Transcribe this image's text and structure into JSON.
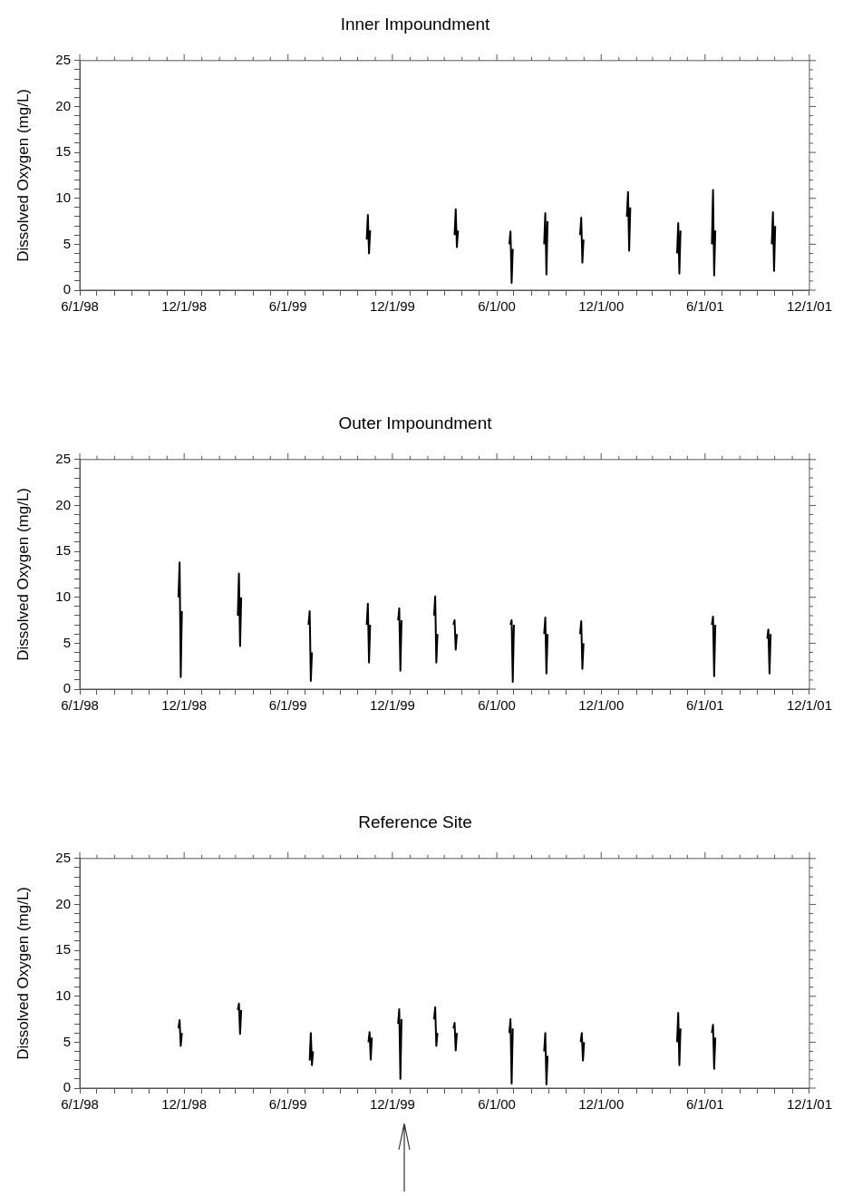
{
  "chart_data": [
    {
      "type": "line",
      "title": "Inner Impoundment",
      "ylabel": "Dissolved Oxygen (mg/L)",
      "grid": false,
      "marker": "none",
      "line_style": "solid",
      "series": [
        {
          "color": "#000000",
          "x": [
            "1999-10-17",
            "1999-10-19",
            "1999-10-21",
            "1999-10-23",
            "1999-10-25",
            "2000-03-19",
            "2000-03-21",
            "2000-03-23",
            "2000-03-25",
            "2000-03-27",
            "2000-06-23",
            "2000-06-25",
            "2000-06-27",
            "2000-06-29",
            "2000-07-01",
            "2000-08-23",
            "2000-08-25",
            "2000-08-27",
            "2000-08-29",
            "2000-08-31",
            "2000-10-25",
            "2000-10-27",
            "2000-10-29",
            "2000-10-31",
            "2000-11-02",
            "2001-01-15",
            "2001-01-17",
            "2001-01-19",
            "2001-01-21",
            "2001-01-23",
            "2001-04-13",
            "2001-04-15",
            "2001-04-17",
            "2001-04-19",
            "2001-04-21",
            "2001-06-13",
            "2001-06-15",
            "2001-06-17",
            "2001-06-19",
            "2001-06-21",
            "2001-09-26",
            "2001-09-28",
            "2001-09-30",
            "2001-10-02"
          ],
          "values": [
            5.5,
            8.2,
            4.0,
            6.5,
            null,
            6.0,
            8.8,
            4.7,
            6.5,
            null,
            5.0,
            6.4,
            0.8,
            4.5,
            null,
            5.0,
            8.4,
            1.7,
            7.5,
            null,
            6.0,
            7.9,
            3.0,
            5.5,
            null,
            8.0,
            10.7,
            4.3,
            9.0,
            null,
            4.0,
            7.3,
            1.8,
            6.5,
            null,
            5.0,
            10.9,
            1.6,
            6.5,
            null,
            5.0,
            8.5,
            2.1,
            7.0
          ]
        }
      ],
      "xlim": [
        "1998-06-01",
        "2001-12-01"
      ],
      "ylim": [
        0,
        25
      ],
      "yticks": [
        0,
        {
          "value": 1,
          "label": null
        },
        {
          "value": 2,
          "label": null
        },
        {
          "value": 3,
          "label": null
        },
        {
          "value": 4,
          "label": null
        },
        5,
        {
          "value": 6,
          "label": null
        },
        {
          "value": 7,
          "label": null
        },
        {
          "value": 8,
          "label": null
        },
        {
          "value": 9,
          "label": null
        },
        10,
        {
          "value": 11,
          "label": null
        },
        {
          "value": 12,
          "label": null
        },
        {
          "value": 13,
          "label": null
        },
        {
          "value": 14,
          "label": null
        },
        15,
        {
          "value": 16,
          "label": null
        },
        {
          "value": 17,
          "label": null
        },
        {
          "value": 18,
          "label": null
        },
        {
          "value": 19,
          "label": null
        },
        20,
        {
          "value": 21,
          "label": null
        },
        {
          "value": 22,
          "label": null
        },
        {
          "value": 23,
          "label": null
        },
        {
          "value": 24,
          "label": null
        },
        25
      ],
      "xticks": [
        {
          "value": "1998-06-01",
          "label": "6/1/98"
        },
        {
          "value": "1998-07-01",
          "label": null
        },
        {
          "value": "1998-08-01",
          "label": null
        },
        {
          "value": "1998-09-01",
          "label": null
        },
        {
          "value": "1998-10-01",
          "label": null
        },
        {
          "value": "1998-11-01",
          "label": null
        },
        {
          "value": "1998-12-01",
          "label": "12/1/98"
        },
        {
          "value": "1999-01-01",
          "label": null
        },
        {
          "value": "1999-02-01",
          "label": null
        },
        {
          "value": "1999-03-01",
          "label": null
        },
        {
          "value": "1999-04-01",
          "label": null
        },
        {
          "value": "1999-05-01",
          "label": null
        },
        {
          "value": "1999-06-01",
          "label": "6/1/99"
        },
        {
          "value": "1999-07-01",
          "label": null
        },
        {
          "value": "1999-08-01",
          "label": null
        },
        {
          "value": "1999-09-01",
          "label": null
        },
        {
          "value": "1999-10-01",
          "label": null
        },
        {
          "value": "1999-11-01",
          "label": null
        },
        {
          "value": "1999-12-01",
          "label": "12/1/99"
        },
        {
          "value": "2000-01-01",
          "label": null
        },
        {
          "value": "2000-02-01",
          "label": null
        },
        {
          "value": "2000-03-01",
          "label": null
        },
        {
          "value": "2000-04-01",
          "label": null
        },
        {
          "value": "2000-05-01",
          "label": null
        },
        {
          "value": "2000-06-01",
          "label": "6/1/00"
        },
        {
          "value": "2000-07-01",
          "label": null
        },
        {
          "value": "2000-08-01",
          "label": null
        },
        {
          "value": "2000-09-01",
          "label": null
        },
        {
          "value": "2000-10-01",
          "label": null
        },
        {
          "value": "2000-11-01",
          "label": null
        },
        {
          "value": "2000-12-01",
          "label": "12/1/00"
        },
        {
          "value": "2001-01-01",
          "label": null
        },
        {
          "value": "2001-02-01",
          "label": null
        },
        {
          "value": "2001-03-01",
          "label": null
        },
        {
          "value": "2001-04-01",
          "label": null
        },
        {
          "value": "2001-05-01",
          "label": null
        },
        {
          "value": "2001-06-01",
          "label": "6/1/01"
        },
        {
          "value": "2001-07-01",
          "label": null
        },
        {
          "value": "2001-08-01",
          "label": null
        },
        {
          "value": "2001-09-01",
          "label": null
        },
        {
          "value": "2001-10-01",
          "label": null
        },
        {
          "value": "2001-11-01",
          "label": null
        },
        {
          "value": "2001-12-01",
          "label": "12/1/01"
        }
      ]
    },
    {
      "type": "line",
      "title": "Outer Impoundment",
      "ylabel": "Dissolved Oxygen (mg/L)",
      "grid": false,
      "marker": "none",
      "line_style": "solid",
      "series": [
        {
          "color": "#000000",
          "x": [
            "1998-11-21",
            "1998-11-23",
            "1998-11-25",
            "1998-11-27",
            "1998-11-29",
            "1999-03-05",
            "1999-03-07",
            "1999-03-09",
            "1999-03-11",
            "1999-03-13",
            "1999-07-07",
            "1999-07-09",
            "1999-07-11",
            "1999-07-13",
            "1999-07-15",
            "1999-10-17",
            "1999-10-19",
            "1999-10-21",
            "1999-10-23",
            "1999-10-25",
            "1999-12-11",
            "1999-12-13",
            "1999-12-15",
            "1999-12-17",
            "1999-12-19",
            "2000-02-12",
            "2000-02-14",
            "2000-02-16",
            "2000-02-18",
            "2000-02-20",
            "2000-03-17",
            "2000-03-19",
            "2000-03-21",
            "2000-03-23",
            "2000-03-25",
            "2000-06-25",
            "2000-06-27",
            "2000-06-29",
            "2000-07-01",
            "2000-07-03",
            "2000-08-23",
            "2000-08-25",
            "2000-08-27",
            "2000-08-29",
            "2000-08-31",
            "2000-10-25",
            "2000-10-27",
            "2000-10-29",
            "2000-10-31",
            "2000-11-02",
            "2001-06-13",
            "2001-06-15",
            "2001-06-17",
            "2001-06-19",
            "2001-06-21",
            "2001-09-18",
            "2001-09-20",
            "2001-09-22",
            "2001-09-24"
          ],
          "values": [
            10.0,
            13.8,
            1.3,
            8.5,
            null,
            8.0,
            12.6,
            4.7,
            10.0,
            null,
            7.0,
            8.5,
            0.9,
            4.0,
            null,
            7.0,
            9.3,
            2.9,
            7.0,
            null,
            7.5,
            8.8,
            2.0,
            7.5,
            null,
            8.0,
            10.1,
            2.9,
            6.0,
            null,
            7.0,
            7.5,
            4.3,
            6.0,
            null,
            7.0,
            7.5,
            0.8,
            7.0,
            null,
            6.0,
            7.8,
            1.7,
            6.0,
            null,
            6.0,
            7.4,
            2.2,
            5.0,
            null,
            7.0,
            7.9,
            1.4,
            7.0,
            null,
            5.5,
            6.5,
            1.7,
            6.0
          ]
        }
      ],
      "xlim": [
        "1998-06-01",
        "2001-12-01"
      ],
      "ylim": [
        0,
        25
      ],
      "yticks": [
        0,
        {
          "value": 1,
          "label": null
        },
        {
          "value": 2,
          "label": null
        },
        {
          "value": 3,
          "label": null
        },
        {
          "value": 4,
          "label": null
        },
        5,
        {
          "value": 6,
          "label": null
        },
        {
          "value": 7,
          "label": null
        },
        {
          "value": 8,
          "label": null
        },
        {
          "value": 9,
          "label": null
        },
        10,
        {
          "value": 11,
          "label": null
        },
        {
          "value": 12,
          "label": null
        },
        {
          "value": 13,
          "label": null
        },
        {
          "value": 14,
          "label": null
        },
        15,
        {
          "value": 16,
          "label": null
        },
        {
          "value": 17,
          "label": null
        },
        {
          "value": 18,
          "label": null
        },
        {
          "value": 19,
          "label": null
        },
        20,
        {
          "value": 21,
          "label": null
        },
        {
          "value": 22,
          "label": null
        },
        {
          "value": 23,
          "label": null
        },
        {
          "value": 24,
          "label": null
        },
        25
      ],
      "xticks": [
        {
          "value": "1998-06-01",
          "label": "6/1/98"
        },
        {
          "value": "1998-07-01",
          "label": null
        },
        {
          "value": "1998-08-01",
          "label": null
        },
        {
          "value": "1998-09-01",
          "label": null
        },
        {
          "value": "1998-10-01",
          "label": null
        },
        {
          "value": "1998-11-01",
          "label": null
        },
        {
          "value": "1998-12-01",
          "label": "12/1/98"
        },
        {
          "value": "1999-01-01",
          "label": null
        },
        {
          "value": "1999-02-01",
          "label": null
        },
        {
          "value": "1999-03-01",
          "label": null
        },
        {
          "value": "1999-04-01",
          "label": null
        },
        {
          "value": "1999-05-01",
          "label": null
        },
        {
          "value": "1999-06-01",
          "label": "6/1/99"
        },
        {
          "value": "1999-07-01",
          "label": null
        },
        {
          "value": "1999-08-01",
          "label": null
        },
        {
          "value": "1999-09-01",
          "label": null
        },
        {
          "value": "1999-10-01",
          "label": null
        },
        {
          "value": "1999-11-01",
          "label": null
        },
        {
          "value": "1999-12-01",
          "label": "12/1/99"
        },
        {
          "value": "2000-01-01",
          "label": null
        },
        {
          "value": "2000-02-01",
          "label": null
        },
        {
          "value": "2000-03-01",
          "label": null
        },
        {
          "value": "2000-04-01",
          "label": null
        },
        {
          "value": "2000-05-01",
          "label": null
        },
        {
          "value": "2000-06-01",
          "label": "6/1/00"
        },
        {
          "value": "2000-07-01",
          "label": null
        },
        {
          "value": "2000-08-01",
          "label": null
        },
        {
          "value": "2000-09-01",
          "label": null
        },
        {
          "value": "2000-10-01",
          "label": null
        },
        {
          "value": "2000-11-01",
          "label": null
        },
        {
          "value": "2000-12-01",
          "label": "12/1/00"
        },
        {
          "value": "2001-01-01",
          "label": null
        },
        {
          "value": "2001-02-01",
          "label": null
        },
        {
          "value": "2001-03-01",
          "label": null
        },
        {
          "value": "2001-04-01",
          "label": null
        },
        {
          "value": "2001-05-01",
          "label": null
        },
        {
          "value": "2001-06-01",
          "label": "6/1/01"
        },
        {
          "value": "2001-07-01",
          "label": null
        },
        {
          "value": "2001-08-01",
          "label": null
        },
        {
          "value": "2001-09-01",
          "label": null
        },
        {
          "value": "2001-10-01",
          "label": null
        },
        {
          "value": "2001-11-01",
          "label": null
        },
        {
          "value": "2001-12-01",
          "label": "12/1/01"
        }
      ]
    },
    {
      "type": "line",
      "title": "Reference Site",
      "ylabel": "Dissolved Oxygen (mg/L)",
      "grid": false,
      "marker": "none",
      "line_style": "solid",
      "series": [
        {
          "color": "#000000",
          "x": [
            "1998-11-21",
            "1998-11-23",
            "1998-11-25",
            "1998-11-27",
            "1998-11-29",
            "1999-03-05",
            "1999-03-07",
            "1999-03-09",
            "1999-03-11",
            "1999-03-13",
            "1999-07-09",
            "1999-07-11",
            "1999-07-13",
            "1999-07-15",
            "1999-07-17",
            "1999-10-20",
            "1999-10-22",
            "1999-10-24",
            "1999-10-26",
            "1999-10-28",
            "1999-12-11",
            "1999-12-13",
            "1999-12-15",
            "1999-12-17",
            "1999-12-19",
            "2000-02-12",
            "2000-02-14",
            "2000-02-16",
            "2000-02-18",
            "2000-02-20",
            "2000-03-17",
            "2000-03-19",
            "2000-03-21",
            "2000-03-23",
            "2000-03-25",
            "2000-06-23",
            "2000-06-25",
            "2000-06-27",
            "2000-06-29",
            "2000-07-01",
            "2000-08-23",
            "2000-08-25",
            "2000-08-27",
            "2000-08-29",
            "2000-08-31",
            "2000-10-26",
            "2000-10-28",
            "2000-10-30",
            "2000-11-01",
            "2000-11-03",
            "2001-04-13",
            "2001-04-15",
            "2001-04-17",
            "2001-04-19",
            "2001-04-21",
            "2001-06-13",
            "2001-06-15",
            "2001-06-17",
            "2001-06-19"
          ],
          "values": [
            6.5,
            7.4,
            4.6,
            6.0,
            null,
            8.5,
            9.2,
            5.9,
            8.5,
            null,
            3.0,
            6.0,
            2.5,
            4.0,
            null,
            5.0,
            6.1,
            3.1,
            5.5,
            null,
            7.0,
            8.6,
            1.0,
            7.5,
            null,
            7.5,
            8.8,
            4.6,
            6.0,
            null,
            6.5,
            7.1,
            4.1,
            6.0,
            null,
            6.0,
            7.5,
            0.5,
            6.5,
            null,
            4.0,
            6.0,
            0.4,
            3.5,
            null,
            5.0,
            6.0,
            3.0,
            5.0,
            null,
            5.0,
            8.2,
            2.5,
            6.5,
            null,
            6.0,
            6.9,
            2.1,
            5.5
          ]
        }
      ],
      "xlim": [
        "1998-06-01",
        "2001-12-01"
      ],
      "ylim": [
        0,
        25
      ],
      "yticks": [
        0,
        {
          "value": 1,
          "label": null
        },
        {
          "value": 2,
          "label": null
        },
        {
          "value": 3,
          "label": null
        },
        {
          "value": 4,
          "label": null
        },
        5,
        {
          "value": 6,
          "label": null
        },
        {
          "value": 7,
          "label": null
        },
        {
          "value": 8,
          "label": null
        },
        {
          "value": 9,
          "label": null
        },
        10,
        {
          "value": 11,
          "label": null
        },
        {
          "value": 12,
          "label": null
        },
        {
          "value": 13,
          "label": null
        },
        {
          "value": 14,
          "label": null
        },
        15,
        {
          "value": 16,
          "label": null
        },
        {
          "value": 17,
          "label": null
        },
        {
          "value": 18,
          "label": null
        },
        {
          "value": 19,
          "label": null
        },
        20,
        {
          "value": 21,
          "label": null
        },
        {
          "value": 22,
          "label": null
        },
        {
          "value": 23,
          "label": null
        },
        {
          "value": 24,
          "label": null
        },
        25
      ],
      "xticks": [
        {
          "value": "1998-06-01",
          "label": "6/1/98"
        },
        {
          "value": "1998-07-01",
          "label": null
        },
        {
          "value": "1998-08-01",
          "label": null
        },
        {
          "value": "1998-09-01",
          "label": null
        },
        {
          "value": "1998-10-01",
          "label": null
        },
        {
          "value": "1998-11-01",
          "label": null
        },
        {
          "value": "1998-12-01",
          "label": "12/1/98"
        },
        {
          "value": "1999-01-01",
          "label": null
        },
        {
          "value": "1999-02-01",
          "label": null
        },
        {
          "value": "1999-03-01",
          "label": null
        },
        {
          "value": "1999-04-01",
          "label": null
        },
        {
          "value": "1999-05-01",
          "label": null
        },
        {
          "value": "1999-06-01",
          "label": "6/1/99"
        },
        {
          "value": "1999-07-01",
          "label": null
        },
        {
          "value": "1999-08-01",
          "label": null
        },
        {
          "value": "1999-09-01",
          "label": null
        },
        {
          "value": "1999-10-01",
          "label": null
        },
        {
          "value": "1999-11-01",
          "label": null
        },
        {
          "value": "1999-12-01",
          "label": "12/1/99"
        },
        {
          "value": "2000-01-01",
          "label": null
        },
        {
          "value": "2000-02-01",
          "label": null
        },
        {
          "value": "2000-03-01",
          "label": null
        },
        {
          "value": "2000-04-01",
          "label": null
        },
        {
          "value": "2000-05-01",
          "label": null
        },
        {
          "value": "2000-06-01",
          "label": "6/1/00"
        },
        {
          "value": "2000-07-01",
          "label": null
        },
        {
          "value": "2000-08-01",
          "label": null
        },
        {
          "value": "2000-09-01",
          "label": null
        },
        {
          "value": "2000-10-01",
          "label": null
        },
        {
          "value": "2000-11-01",
          "label": null
        },
        {
          "value": "2000-12-01",
          "label": "12/1/00"
        },
        {
          "value": "2001-01-01",
          "label": null
        },
        {
          "value": "2001-02-01",
          "label": null
        },
        {
          "value": "2001-03-01",
          "label": null
        },
        {
          "value": "2001-04-01",
          "label": null
        },
        {
          "value": "2001-05-01",
          "label": null
        },
        {
          "value": "2001-06-01",
          "label": "6/1/01"
        },
        {
          "value": "2001-07-01",
          "label": null
        },
        {
          "value": "2001-08-01",
          "label": null
        },
        {
          "value": "2001-09-01",
          "label": null
        },
        {
          "value": "2001-10-01",
          "label": null
        },
        {
          "value": "2001-11-01",
          "label": null
        },
        {
          "value": "2001-12-01",
          "label": "12/1/01"
        }
      ]
    }
  ]
}
